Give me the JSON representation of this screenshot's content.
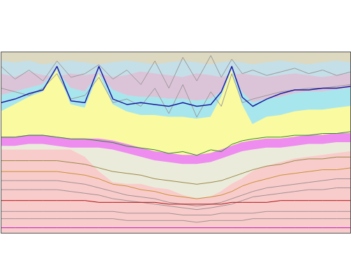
{
  "chart_data": {
    "type": "line",
    "x": [
      0,
      4,
      8,
      12,
      16,
      20,
      24,
      28,
      32,
      36,
      40,
      44,
      48,
      52,
      56,
      60,
      63,
      66,
      69,
      72,
      76,
      80,
      84,
      88,
      92,
      96,
      100
    ],
    "xlim": [
      0,
      100
    ],
    "ylim": [
      0,
      100
    ],
    "tick_labels": false,
    "series": [
      {
        "type": "area",
        "color": "#ddd8c0",
        "values": [
          100,
          100,
          100,
          100,
          100,
          100,
          100,
          100,
          100,
          100,
          100,
          100,
          100,
          100,
          100,
          100,
          100,
          100,
          100,
          100,
          100,
          100,
          100,
          100,
          100,
          100,
          100
        ]
      },
      {
        "type": "area",
        "color": "#c4dfe8",
        "values": [
          95,
          94,
          95,
          93,
          94,
          95,
          94,
          93,
          94,
          95,
          94,
          93,
          94,
          95,
          94,
          93,
          94,
          95,
          94,
          93,
          94,
          95,
          94,
          93,
          94,
          95,
          94
        ]
      },
      {
        "type": "area",
        "color": "#dcc4d8",
        "values": [
          88,
          86,
          89,
          87,
          86,
          88,
          87,
          88,
          86,
          87,
          89,
          88,
          87,
          86,
          88,
          87,
          86,
          87,
          88,
          87,
          86,
          87,
          88,
          87,
          86,
          87,
          88
        ]
      },
      {
        "type": "area",
        "color": "#a8e6ee",
        "values": [
          76,
          78,
          80,
          82,
          90,
          80,
          78,
          88,
          79,
          76,
          75,
          75,
          74,
          74,
          73,
          74,
          78,
          90,
          78,
          72,
          74,
          75,
          77,
          78,
          78,
          79,
          80
        ]
      },
      {
        "type": "area",
        "color": "#fafaa0",
        "values": [
          67,
          71,
          75,
          78,
          90,
          71,
          69,
          88,
          71,
          67,
          65,
          65,
          64,
          64,
          63,
          64,
          75,
          90,
          71,
          60,
          64,
          65,
          67,
          68,
          68,
          69,
          70
        ]
      },
      {
        "type": "area",
        "color": "#ee8cf0",
        "values": [
          53,
          53,
          54,
          54,
          53,
          52,
          52,
          52,
          51,
          49,
          47,
          45,
          44,
          43,
          43,
          44,
          46,
          48,
          50,
          51,
          52,
          52,
          53,
          54,
          54,
          55,
          55
        ]
      },
      {
        "type": "area",
        "color": "#ebebdc",
        "values": [
          48,
          48,
          49,
          49,
          48,
          47,
          47,
          47,
          46,
          44,
          42,
          40,
          39,
          38,
          38,
          39,
          41,
          43,
          45,
          46,
          47,
          47,
          48,
          49,
          49,
          50,
          50
        ]
      },
      {
        "type": "area",
        "color": "#f9cccc",
        "values": [
          46,
          46,
          46,
          46,
          46,
          46,
          42,
          34,
          28,
          27,
          27,
          25,
          24,
          21,
          19,
          20,
          23,
          27,
          30,
          34,
          37,
          39,
          41,
          42,
          43,
          44,
          45
        ]
      },
      {
        "type": "line",
        "color": "#999999",
        "values": [
          92,
          85,
          90,
          84,
          95,
          86,
          88,
          93,
          85,
          90,
          82,
          95,
          80,
          97,
          84,
          98,
          86,
          96,
          88,
          90,
          87,
          89,
          91,
          88,
          90,
          87,
          89
        ]
      },
      {
        "type": "line",
        "color": "#999999",
        "values": [
          80,
          78,
          76,
          80,
          88,
          74,
          76,
          86,
          72,
          74,
          70,
          80,
          66,
          82,
          64,
          78,
          70,
          88,
          72,
          74,
          76,
          78,
          79,
          80,
          80,
          81,
          82
        ]
      },
      {
        "type": "line",
        "color": "#1a1aa0",
        "values": [
          72,
          74,
          77,
          79,
          92,
          73,
          72,
          92,
          74,
          71,
          72,
          71,
          70,
          72,
          70,
          71,
          78,
          92,
          75,
          70,
          74,
          77,
          79,
          79,
          80,
          80,
          81
        ]
      },
      {
        "type": "line",
        "color": "#2a8a2a",
        "values": [
          53,
          53,
          54,
          54,
          53,
          52,
          52,
          51,
          50,
          48,
          47,
          46,
          44,
          45,
          43,
          46,
          45,
          49,
          51,
          52,
          53,
          53,
          54,
          54,
          55,
          55,
          56
        ]
      },
      {
        "type": "line",
        "color": "#998844",
        "values": [
          40,
          40,
          40,
          40,
          40,
          39,
          38,
          36,
          34,
          33,
          32,
          30,
          29,
          28,
          27,
          28,
          29,
          31,
          33,
          35,
          37,
          38,
          40,
          41,
          41,
          42,
          42
        ]
      },
      {
        "type": "line",
        "color": "#c89030",
        "values": [
          34,
          34,
          34,
          34,
          34,
          33,
          32,
          30,
          27,
          26,
          24,
          23,
          21,
          20,
          19,
          20,
          21,
          23,
          26,
          28,
          30,
          32,
          33,
          34,
          35,
          35,
          36
        ]
      },
      {
        "type": "line",
        "color": "#a09090",
        "values": [
          29,
          29,
          29,
          29,
          29,
          28,
          27,
          25,
          23,
          21,
          20,
          19,
          17,
          16,
          15,
          16,
          17,
          19,
          21,
          23,
          25,
          26,
          27,
          28,
          29,
          30,
          30
        ]
      },
      {
        "type": "line",
        "color": "#a09090",
        "values": [
          24,
          24,
          24,
          24,
          24,
          23,
          22,
          21,
          19,
          18,
          17,
          16,
          15,
          14,
          13,
          14,
          15,
          16,
          18,
          20,
          21,
          22,
          23,
          24,
          24,
          25,
          25
        ]
      },
      {
        "type": "line",
        "color": "#b01010",
        "values": [
          18,
          18,
          18,
          18,
          18,
          18,
          18,
          17,
          17,
          17,
          17,
          17,
          16,
          16,
          16,
          16,
          16,
          17,
          17,
          17,
          17,
          18,
          18,
          18,
          18,
          18,
          18
        ]
      },
      {
        "type": "line",
        "color": "#a09090",
        "values": [
          12,
          12,
          12,
          12,
          12,
          12,
          12,
          12,
          12,
          11,
          11,
          11,
          11,
          10,
          10,
          10,
          11,
          11,
          11,
          11,
          12,
          12,
          12,
          12,
          12,
          12,
          12
        ]
      },
      {
        "type": "line",
        "color": "#a09090",
        "values": [
          8,
          8,
          8,
          8,
          8,
          8,
          8,
          8,
          8,
          7,
          7,
          7,
          7,
          7,
          6,
          7,
          7,
          7,
          7,
          8,
          8,
          8,
          8,
          8,
          8,
          8,
          8
        ]
      },
      {
        "type": "line",
        "color": "#c010c0",
        "values": [
          3,
          3,
          3,
          3,
          3,
          3,
          3,
          3,
          3,
          3,
          3,
          3,
          3,
          3,
          3,
          3,
          3,
          3,
          3,
          3,
          3,
          3,
          3,
          3,
          3,
          3,
          3
        ]
      }
    ]
  }
}
